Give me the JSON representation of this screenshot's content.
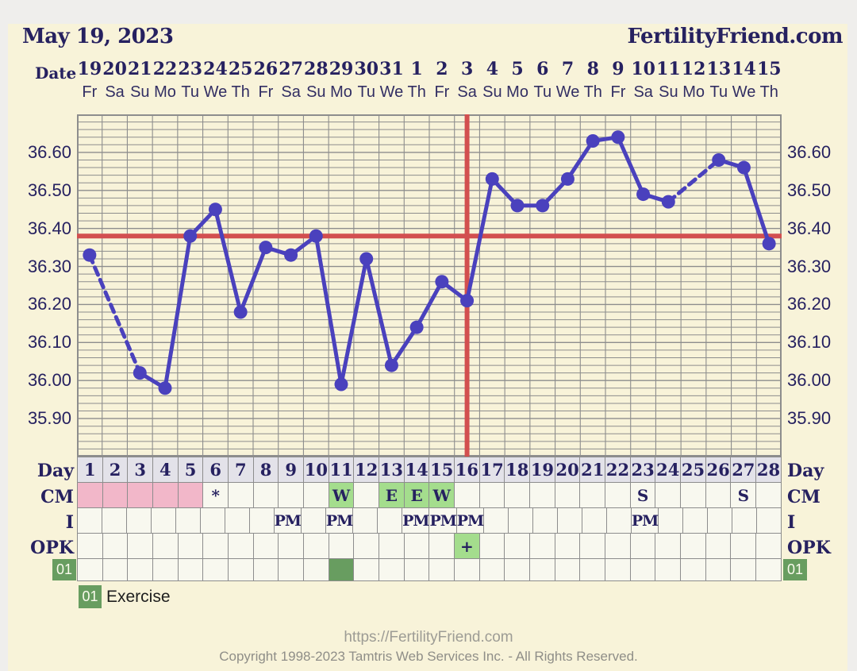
{
  "header": {
    "date": "May 19, 2023",
    "site": "FertilityFriend.com"
  },
  "axis": {
    "date_label": "Date"
  },
  "dates": [
    "19",
    "20",
    "21",
    "22",
    "23",
    "24",
    "25",
    "26",
    "27",
    "28",
    "29",
    "30",
    "31",
    "1",
    "2",
    "3",
    "4",
    "5",
    "6",
    "7",
    "8",
    "9",
    "10",
    "11",
    "12",
    "13",
    "14",
    "15"
  ],
  "weekdays": [
    "Fr",
    "Sa",
    "Su",
    "Mo",
    "Tu",
    "We",
    "Th",
    "Fr",
    "Sa",
    "Su",
    "Mo",
    "Tu",
    "We",
    "Th",
    "Fr",
    "Sa",
    "Su",
    "Mo",
    "Tu",
    "We",
    "Th",
    "Fr",
    "Sa",
    "Su",
    "Mo",
    "Tu",
    "We",
    "Th"
  ],
  "chart_data": {
    "type": "line",
    "title": "May 19, 2023",
    "xlabel_top": "Date",
    "xlabel_bottom": "Day",
    "x": [
      1,
      2,
      3,
      4,
      5,
      6,
      7,
      8,
      9,
      10,
      11,
      12,
      13,
      14,
      15,
      16,
      17,
      18,
      19,
      20,
      21,
      22,
      23,
      24,
      25,
      26,
      27,
      28
    ],
    "series": [
      {
        "name": "temperature",
        "values": [
          36.33,
          null,
          36.02,
          35.98,
          36.38,
          36.45,
          36.18,
          36.35,
          36.33,
          36.38,
          35.99,
          36.32,
          36.04,
          36.14,
          36.26,
          36.21,
          36.53,
          36.46,
          36.46,
          36.53,
          36.63,
          36.64,
          36.49,
          36.47,
          null,
          36.58,
          36.56,
          36.36
        ]
      }
    ],
    "coverline_value": 36.38,
    "ovulation_line_x": 16,
    "ylim": [
      35.8,
      36.7
    ],
    "yticks": [
      "36.60",
      "36.50",
      "36.40",
      "36.30",
      "36.20",
      "36.10",
      "36.00",
      "35.90"
    ],
    "minor_grid_step": 0.02,
    "grid": true,
    "legend_position": "none",
    "missing_days_dashed": [
      2,
      25
    ]
  },
  "table": {
    "day_row": {
      "label": "Day",
      "cells": [
        "1",
        "2",
        "3",
        "4",
        "5",
        "6",
        "7",
        "8",
        "9",
        "10",
        "11",
        "12",
        "13",
        "14",
        "15",
        "16",
        "17",
        "18",
        "19",
        "20",
        "21",
        "22",
        "23",
        "24",
        "25",
        "26",
        "27",
        "28"
      ]
    },
    "cm_row": {
      "label": "CM",
      "by_day": {
        "1": {
          "bg": "menses"
        },
        "2": {
          "bg": "menses"
        },
        "3": {
          "bg": "menses"
        },
        "4": {
          "bg": "menses"
        },
        "5": {
          "bg": "menses"
        },
        "6": {
          "text": "*"
        },
        "11": {
          "text": "W",
          "bg": "fertile"
        },
        "13": {
          "text": "E",
          "bg": "fertile"
        },
        "14": {
          "text": "E",
          "bg": "fertile"
        },
        "15": {
          "text": "W",
          "bg": "fertile"
        },
        "23": {
          "text": "S"
        },
        "27": {
          "text": "S"
        }
      }
    },
    "i_row": {
      "label": "I",
      "by_day": {
        "9": {
          "text": "PM"
        },
        "11": {
          "text": "PM"
        },
        "14": {
          "text": "PM"
        },
        "15": {
          "text": "PM"
        },
        "16": {
          "text": "PM"
        },
        "23": {
          "text": "PM"
        }
      }
    },
    "opk_row": {
      "label": "OPK",
      "by_day": {
        "16": {
          "text": "+",
          "bg": "fertile"
        }
      }
    },
    "custom_row": {
      "label": "01",
      "by_day": {
        "11": {
          "bg": "filled"
        }
      }
    }
  },
  "legend": {
    "badge": "01",
    "label": "Exercise"
  },
  "footer": {
    "url": "https://FertilityFriend.com",
    "copyright": "Copyright 1998-2023 Tamtris Web Services Inc. - All Rights Reserved."
  },
  "colors": {
    "page_bg": "#efeeec",
    "panel_bg": "#f8f3d9",
    "navy": "#262160",
    "line_purple": "#4a41bd",
    "red": "#d24f4f",
    "grid": "#8d8d8d",
    "cell_bg": "#f8f8ef",
    "day_header_bg": "#e3e2e9",
    "menses": "#f2b7c9",
    "fertile": "#a4dd8d",
    "filled": "#689d60",
    "footer_gray": "#9d9c95"
  }
}
